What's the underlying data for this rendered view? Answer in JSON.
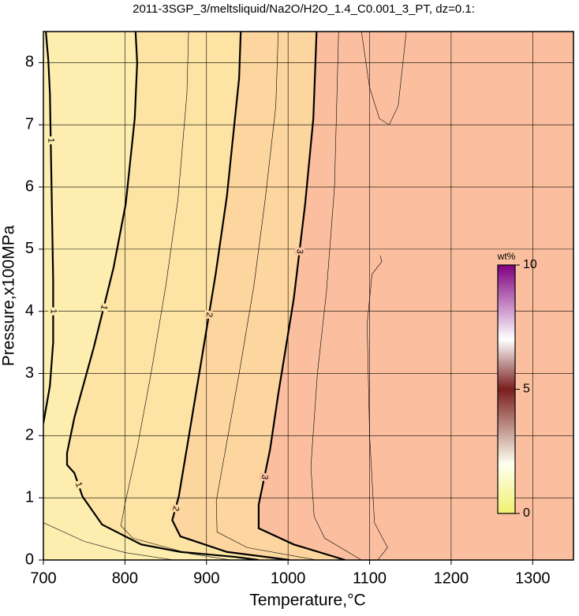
{
  "chart_data": {
    "type": "contour",
    "title": "2011-3SGP_3/meltsliquid/Na2O/H2O_1.4_C0.001_3_PT, dz=0.1:",
    "x_label": "Temperature,°C",
    "y_label": "Pressure,x100MPa",
    "xlim": [
      700,
      1350
    ],
    "ylim": [
      0,
      8.5
    ],
    "xticks": [
      700,
      800,
      900,
      1000,
      1100,
      1200,
      1300
    ],
    "yticks": [
      0,
      1,
      2,
      3,
      4,
      5,
      6,
      7,
      8
    ],
    "grid": true,
    "background": "#fdeeb0",
    "contours": [
      {
        "level": 1,
        "labeled": true,
        "fill": "#fde4a4",
        "x": [
          813,
          815,
          812,
          801,
          786,
          762,
          738,
          729,
          729,
          738,
          748,
          772,
          820,
          868,
          935,
          964
        ],
        "y": [
          8.5,
          8.0,
          7.1,
          5.73,
          4.7,
          3.43,
          2.29,
          1.72,
          1.53,
          1.4,
          1.02,
          0.57,
          0.25,
          0.13,
          0.05,
          0
        ]
      },
      {
        "level": 1,
        "labeled": true,
        "x": [
          703,
          706,
          708,
          710,
          712,
          712,
          708,
          700
        ],
        "y": [
          8.5,
          8.05,
          7.5,
          6.0,
          4.5,
          3.5,
          2.8,
          2.2
        ]
      },
      {
        "level": 2,
        "labeled": true,
        "fill": "#fdd59e",
        "x": [
          942,
          940,
          925,
          911,
          895,
          879,
          866,
          858,
          868,
          925,
          1002
        ],
        "y": [
          8.5,
          7.75,
          5.85,
          4.58,
          3.31,
          2.04,
          1.02,
          0.64,
          0.38,
          0.13,
          0
        ]
      },
      {
        "level": 3,
        "labeled": true,
        "fill": "#fbbf9f",
        "x": [
          1035,
          1031,
          1021,
          1007,
          988,
          978,
          964,
          964,
          1007,
          1070
        ],
        "y": [
          8.5,
          7.1,
          5.73,
          4.2,
          2.67,
          1.78,
          0.89,
          0.51,
          0.25,
          0
        ]
      },
      {
        "level": 0.5,
        "labeled": false,
        "x": [
          700,
          750,
          800,
          860
        ],
        "y": [
          0.6,
          0.3,
          0.12,
          0
        ]
      },
      {
        "level": 1.5,
        "labeled": false,
        "x": [
          878,
          876,
          865,
          850,
          832,
          815,
          800,
          795,
          810,
          880,
          930
        ],
        "y": [
          8.5,
          7.5,
          5.8,
          4.4,
          3.0,
          1.8,
          0.9,
          0.55,
          0.35,
          0.1,
          0
        ]
      },
      {
        "level": 2.5,
        "labeled": false,
        "x": [
          988,
          985,
          972,
          958,
          940,
          925,
          912,
          913,
          950,
          1035
        ],
        "y": [
          8.5,
          7.3,
          5.8,
          4.4,
          3.0,
          1.9,
          0.95,
          0.45,
          0.2,
          0
        ]
      },
      {
        "level": 3.5,
        "labeled": false,
        "x": [
          1062,
          1057,
          1047,
          1036,
          1028,
          1032,
          1045,
          1090
        ],
        "y": [
          8.5,
          6.0,
          4.3,
          3.0,
          1.5,
          0.7,
          0.35,
          0
        ]
      },
      {
        "level": 3.7,
        "labeled": false,
        "x": [
          1090,
          1100,
          1112,
          1124,
          1135,
          1145
        ],
        "y": [
          8.5,
          7.6,
          7.1,
          7.0,
          7.3,
          8.5
        ]
      },
      {
        "level": 3.8,
        "labeled": false,
        "x": [
          1110,
          1122,
          1106,
          1100,
          1097,
          1103,
          1115,
          1113
        ],
        "y": [
          0,
          0.2,
          0.6,
          2.0,
          3.8,
          4.6,
          4.8,
          4.9
        ]
      }
    ],
    "colorbar": {
      "label": "wt%",
      "lim": [
        0,
        10
      ],
      "ticks": [
        0,
        5,
        10
      ]
    }
  }
}
